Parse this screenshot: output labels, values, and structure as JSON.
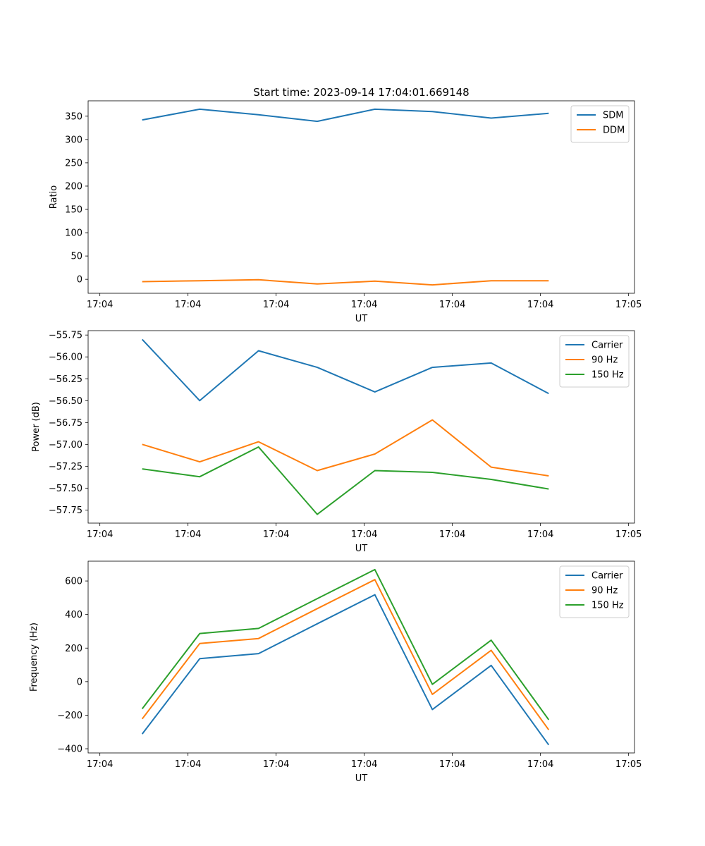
{
  "chart_data": [
    {
      "type": "line",
      "title": "Start time: 2023-09-14 17:04:01.669148",
      "xlabel": "UT",
      "ylabel": "Ratio",
      "xlim": [
        -0.2,
        9.1
      ],
      "ylim": [
        -30,
        383
      ],
      "x_tick_positions": [
        0,
        1.5,
        3,
        4.5,
        6,
        7.5,
        9
      ],
      "x_tick_labels": [
        "17:04",
        "17:04",
        "17:04",
        "17:04",
        "17:04",
        "17:04",
        "17:05"
      ],
      "y_ticks": [
        0,
        50,
        100,
        150,
        200,
        250,
        300,
        350
      ],
      "legend_position": "top-right",
      "x": [
        0.72,
        1.7,
        2.7,
        3.7,
        4.68,
        5.66,
        6.66,
        7.64
      ],
      "series": [
        {
          "name": "SDM",
          "color": "#1f77b4",
          "values": [
            342,
            365,
            353,
            339,
            365,
            360,
            346,
            356
          ]
        },
        {
          "name": "DDM",
          "color": "#ff7f0e",
          "values": [
            -5,
            -3,
            -1,
            -10,
            -4,
            -12,
            -3,
            -3
          ]
        }
      ]
    },
    {
      "type": "line",
      "title": "",
      "xlabel": "UT",
      "ylabel": "Power (dB)",
      "xlim": [
        -0.2,
        9.1
      ],
      "ylim": [
        -57.9,
        -55.7
      ],
      "x_tick_positions": [
        0,
        1.5,
        3,
        4.5,
        6,
        7.5,
        9
      ],
      "x_tick_labels": [
        "17:04",
        "17:04",
        "17:04",
        "17:04",
        "17:04",
        "17:04",
        "17:05"
      ],
      "y_ticks": [
        -57.75,
        -57.5,
        -57.25,
        -57.0,
        -56.75,
        -56.5,
        -56.25,
        -56.0,
        -55.75
      ],
      "y_tick_labels": [
        "−57.75",
        "−57.50",
        "−57.25",
        "−57.00",
        "−56.75",
        "−56.50",
        "−56.25",
        "−56.00",
        "−55.75"
      ],
      "legend_position": "top-right",
      "x": [
        0.72,
        1.7,
        2.7,
        3.7,
        4.68,
        5.66,
        6.66,
        7.64
      ],
      "series": [
        {
          "name": "Carrier",
          "color": "#1f77b4",
          "values": [
            -55.8,
            -56.5,
            -55.93,
            -56.12,
            -56.4,
            -56.12,
            -56.07,
            -56.42
          ]
        },
        {
          "name": "90 Hz",
          "color": "#ff7f0e",
          "values": [
            -57.0,
            -57.2,
            -56.97,
            -57.3,
            -57.11,
            -56.72,
            -57.26,
            -57.36
          ]
        },
        {
          "name": "150 Hz",
          "color": "#2ca02c",
          "values": [
            -57.28,
            -57.37,
            -57.03,
            -57.8,
            -57.3,
            -57.32,
            -57.4,
            -57.51
          ]
        }
      ]
    },
    {
      "type": "line",
      "title": "",
      "xlabel": "UT",
      "ylabel": "Frequency (Hz)",
      "xlim": [
        -0.2,
        9.1
      ],
      "ylim": [
        -425,
        718
      ],
      "x_tick_positions": [
        0,
        1.5,
        3,
        4.5,
        6,
        7.5,
        9
      ],
      "x_tick_labels": [
        "17:04",
        "17:04",
        "17:04",
        "17:04",
        "17:04",
        "17:04",
        "17:05"
      ],
      "y_ticks": [
        -400,
        -200,
        0,
        200,
        400,
        600
      ],
      "y_tick_labels": [
        "−400",
        "−200",
        "0",
        "200",
        "400",
        "600"
      ],
      "legend_position": "top-right",
      "x": [
        0.72,
        1.7,
        2.7,
        3.7,
        4.68,
        5.66,
        6.66,
        7.64
      ],
      "series": [
        {
          "name": "Carrier",
          "color": "#1f77b4",
          "values": [
            -312,
            137,
            167,
            345,
            518,
            -166,
            97,
            -377
          ]
        },
        {
          "name": "90 Hz",
          "color": "#ff7f0e",
          "values": [
            -222,
            227,
            257,
            435,
            608,
            -76,
            187,
            -287
          ]
        },
        {
          "name": "150 Hz",
          "color": "#2ca02c",
          "values": [
            -162,
            287,
            317,
            495,
            668,
            -16,
            247,
            -227
          ]
        }
      ]
    }
  ]
}
